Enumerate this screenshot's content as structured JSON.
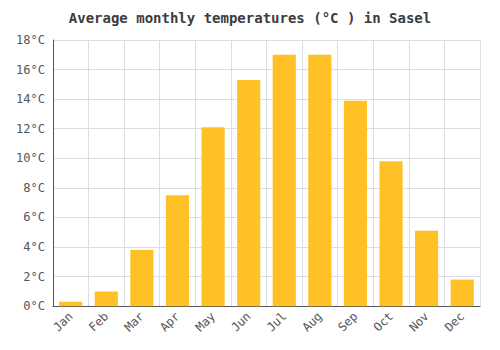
{
  "chart_data": {
    "type": "bar",
    "title": "Average monthly temperatures (°C ) in Sasel",
    "categories": [
      "Jan",
      "Feb",
      "Mar",
      "Apr",
      "May",
      "Jun",
      "Jul",
      "Aug",
      "Sep",
      "Oct",
      "Nov",
      "Dec"
    ],
    "values": [
      0.3,
      1.0,
      3.8,
      7.5,
      12.1,
      15.3,
      17.0,
      17.0,
      13.9,
      9.8,
      5.1,
      1.8
    ],
    "color": "#FFC125",
    "ylim": [
      0,
      18
    ],
    "yticks": [
      {
        "value": 0,
        "label": "0°C"
      },
      {
        "value": 2,
        "label": "2°C"
      },
      {
        "value": 4,
        "label": "4°C"
      },
      {
        "value": 6,
        "label": "6°C"
      },
      {
        "value": 8,
        "label": "8°C"
      },
      {
        "value": 10,
        "label": "10°C"
      },
      {
        "value": 12,
        "label": "12°C"
      },
      {
        "value": 14,
        "label": "14°C"
      },
      {
        "value": 16,
        "label": "16°C"
      },
      {
        "value": 18,
        "label": "18°C"
      }
    ],
    "grid": true
  }
}
